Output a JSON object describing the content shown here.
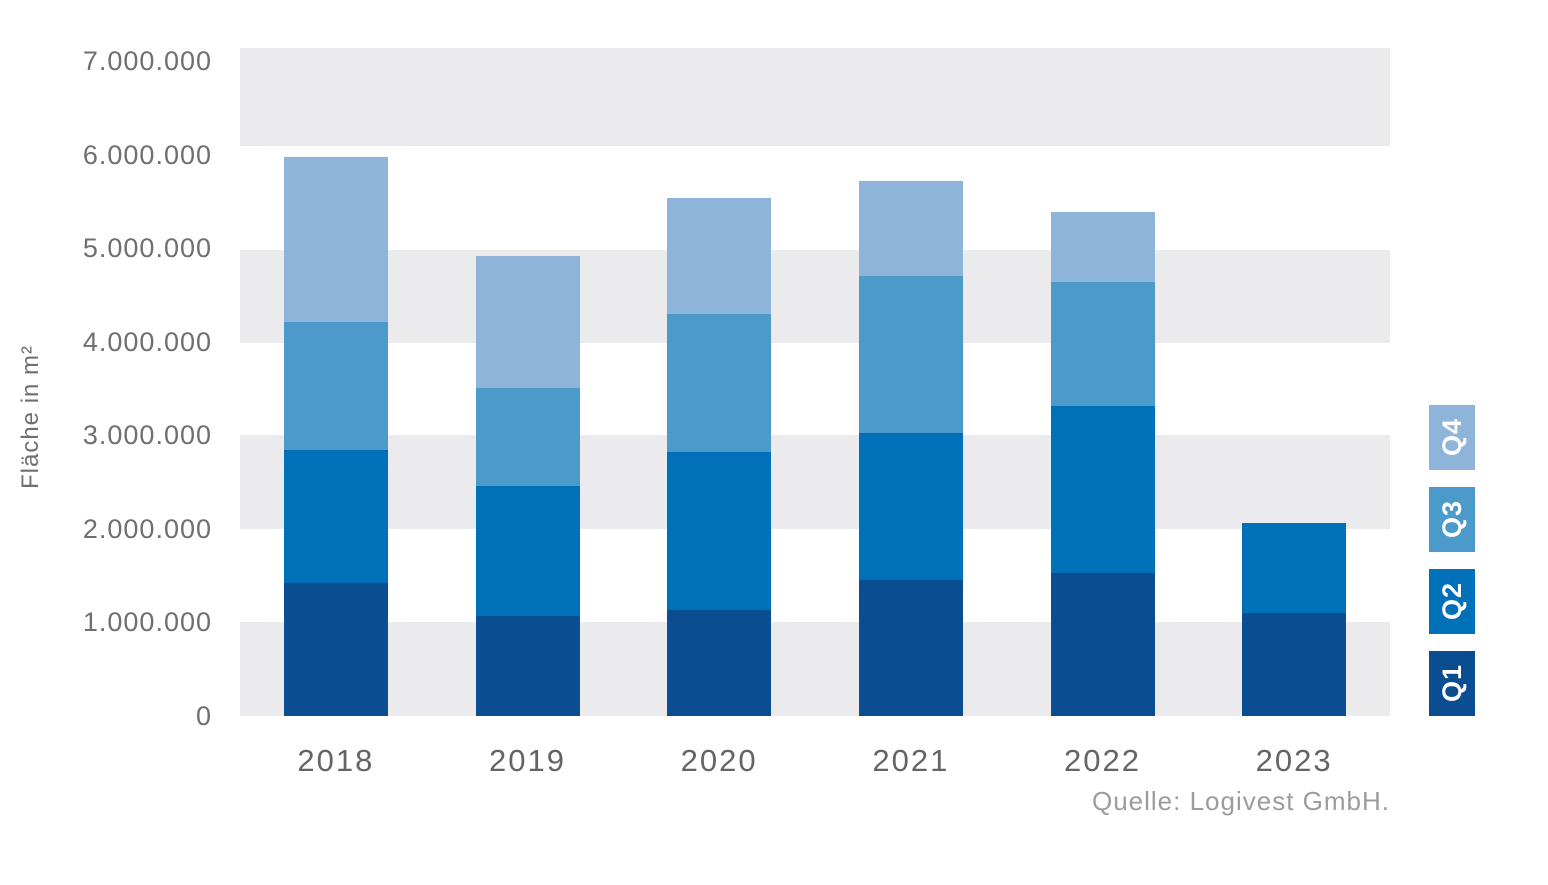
{
  "chart_data": {
    "type": "bar",
    "stacked": true,
    "title": "",
    "xlabel": "",
    "ylabel": "Fläche in m²",
    "categories": [
      "2018",
      "2019",
      "2020",
      "2021",
      "2022",
      "2023"
    ],
    "series": [
      {
        "name": "Q1",
        "color": "#0B4D91",
        "values": [
          1420000,
          1070000,
          1130000,
          1450000,
          1530000,
          1100000
        ]
      },
      {
        "name": "Q2",
        "color": "#0070B8",
        "values": [
          1420000,
          1390000,
          1690000,
          1580000,
          1780000,
          960000
        ]
      },
      {
        "name": "Q3",
        "color": "#4C9ACA",
        "values": [
          1370000,
          1050000,
          1480000,
          1670000,
          1330000,
          0
        ]
      },
      {
        "name": "Q4",
        "color": "#8EB5D9",
        "values": [
          1770000,
          1410000,
          1240000,
          1020000,
          750000,
          0
        ]
      }
    ],
    "totals": [
      5980000,
      4920000,
      5540000,
      5720000,
      5390000,
      2060000
    ],
    "ylim": [
      0,
      7000000
    ],
    "yticks": [
      7000000,
      6000000,
      5000000,
      4000000,
      3000000,
      2000000,
      1000000,
      0
    ],
    "ytick_format": "de-dotted",
    "grid_bands_color": "#EBEBED",
    "legend_position": "right",
    "legend_order": [
      "Q4",
      "Q3",
      "Q2",
      "Q1"
    ],
    "source": "Quelle: Logivest GmbH."
  }
}
